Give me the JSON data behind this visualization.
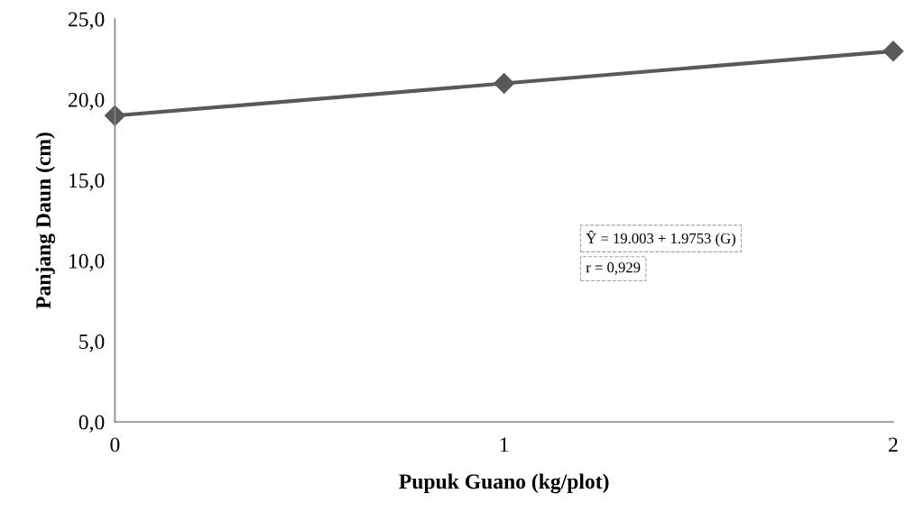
{
  "chart_data": {
    "type": "line",
    "xlabel": "Pupuk Guano (kg/plot)",
    "ylabel": "Panjang Daun (cm)",
    "x": [
      0,
      1,
      2
    ],
    "series": [
      {
        "color": "#595959",
        "values": [
          19.0,
          21.0,
          23.0
        ]
      }
    ],
    "xlim": [
      0,
      2
    ],
    "xticks": [
      0,
      1,
      2
    ],
    "ylim": [
      0,
      25
    ],
    "yticks": [
      {
        "value": 0,
        "label": "0,0"
      },
      {
        "value": 5,
        "label": "5,0"
      },
      {
        "value": 10,
        "label": "10,0"
      },
      {
        "value": 15,
        "label": "15,0"
      },
      {
        "value": 20,
        "label": "20,0"
      },
      {
        "value": 25,
        "label": "25,0"
      }
    ],
    "marker": "diamond",
    "line_style": "solid",
    "grid": false,
    "legend": false,
    "annotations": [
      "Ŷ = 19.003 + 1.9753 (G)",
      "r = 0,929"
    ]
  }
}
